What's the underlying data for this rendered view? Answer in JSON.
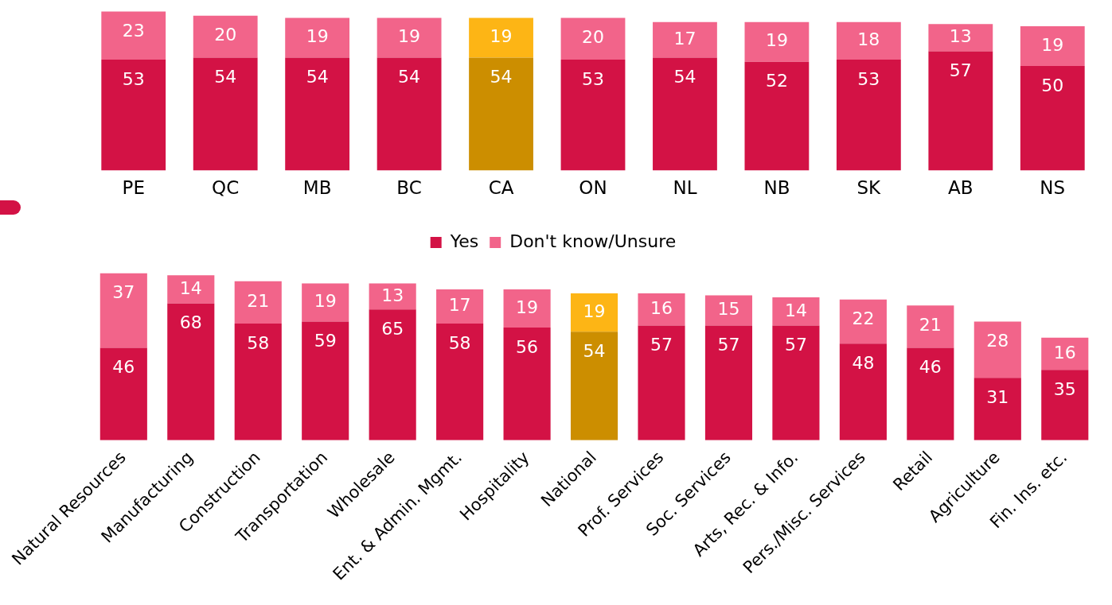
{
  "chart_data": [
    {
      "type": "bar",
      "stacked": true,
      "data_labels": true,
      "legend": false,
      "categories": [
        "PE",
        "QC",
        "MB",
        "BC",
        "CA",
        "ON",
        "NL",
        "NB",
        "SK",
        "AB",
        "NS"
      ],
      "series": [
        {
          "color": "#d31245",
          "colors": [
            "#d31245",
            "#d31245",
            "#d31245",
            "#d31245",
            "#cc8e00",
            "#d31245",
            "#d31245",
            "#d31245",
            "#d31245",
            "#d31245",
            "#d31245"
          ],
          "values": [
            53,
            54,
            54,
            54,
            54,
            53,
            54,
            52,
            53,
            57,
            50
          ]
        },
        {
          "color": "#f2648a",
          "colors": [
            "#f2648a",
            "#f2648a",
            "#f2648a",
            "#f2648a",
            "#fdb515",
            "#f2648a",
            "#f2648a",
            "#f2648a",
            "#f2648a",
            "#f2648a",
            "#f2648a"
          ],
          "values": [
            23,
            20,
            19,
            19,
            19,
            20,
            17,
            19,
            18,
            13,
            19
          ]
        }
      ]
    },
    {
      "type": "bar",
      "stacked": true,
      "data_labels": true,
      "legend": "top",
      "categories": [
        "Natural Resources",
        "Manufacturing",
        "Construction",
        "Transportation",
        "Wholesale",
        "Ent. & Admin. Mgmt.",
        "Hospitality",
        "National",
        "Prof. Services",
        "Soc. Services",
        "Arts, Rec. & Info.",
        "Pers./Misc. Services",
        "Retail",
        "Agriculture",
        "Fin. Ins. etc."
      ],
      "series": [
        {
          "name": "Yes",
          "color": "#d31245",
          "colors": [
            "#d31245",
            "#d31245",
            "#d31245",
            "#d31245",
            "#d31245",
            "#d31245",
            "#d31245",
            "#cc8e00",
            "#d31245",
            "#d31245",
            "#d31245",
            "#d31245",
            "#d31245",
            "#d31245",
            "#d31245"
          ],
          "values": [
            46,
            68,
            58,
            59,
            65,
            58,
            56,
            54,
            57,
            57,
            57,
            48,
            46,
            31,
            35
          ]
        },
        {
          "name": "Don't know/Unsure",
          "color": "#f2648a",
          "colors": [
            "#f2648a",
            "#f2648a",
            "#f2648a",
            "#f2648a",
            "#f2648a",
            "#f2648a",
            "#f2648a",
            "#fdb515",
            "#f2648a",
            "#f2648a",
            "#f2648a",
            "#f2648a",
            "#f2648a",
            "#f2648a",
            "#f2648a"
          ],
          "values": [
            37,
            14,
            21,
            19,
            13,
            17,
            19,
            19,
            16,
            15,
            14,
            22,
            21,
            28,
            16
          ]
        }
      ]
    }
  ]
}
